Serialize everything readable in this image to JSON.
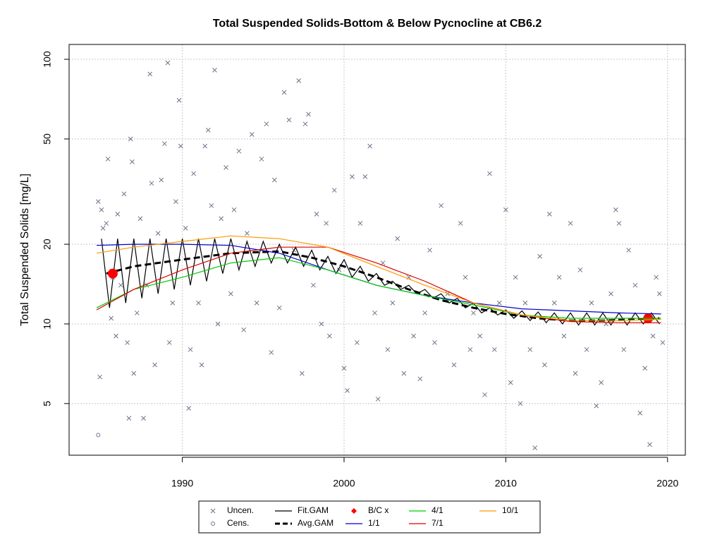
{
  "chart_data": {
    "type": "scatter",
    "title": "Total Suspended Solids-Bottom & Below Pycnocline at CB6.2",
    "y_label": "Total Suspended Solids [mg/L]",
    "log_y": true,
    "grid": true,
    "xlim": [
      1983.0,
      2021.1
    ],
    "ylim": [
      3.19,
      113.8
    ],
    "xticks": [
      1990,
      2000,
      2010,
      2020
    ],
    "yticks": [
      5,
      10,
      20,
      50,
      100
    ],
    "series": [
      {
        "name": "Uncen.",
        "color": "#6b7489",
        "mark": "x",
        "x": [
          1984.8,
          1984.9,
          1985,
          1985.1,
          1985.3,
          1985.4,
          1985.6,
          1985.7,
          1985.9,
          1986,
          1986.2,
          1986.4,
          1986.6,
          1986.7,
          1986.8,
          1986.9,
          1987,
          1987.2,
          1987.4,
          1987.6,
          1987.8,
          1988,
          1988.1,
          1988.3,
          1988.5,
          1988.7,
          1988.9,
          1989.1,
          1989.2,
          1989.4,
          1989.6,
          1989.8,
          1989.9,
          1990.2,
          1990.4,
          1990.5,
          1990.7,
          1991,
          1991.2,
          1991.4,
          1991.6,
          1991.8,
          1992,
          1992.2,
          1992.4,
          1992.7,
          1993,
          1993.2,
          1993.5,
          1993.8,
          1994,
          1994.3,
          1994.6,
          1994.9,
          1995.2,
          1995.5,
          1995.7,
          1996,
          1996.3,
          1996.6,
          1996.9,
          1997.2,
          1997.4,
          1997.6,
          1997.8,
          1998.1,
          1998.3,
          1998.6,
          1998.9,
          1999.1,
          1999.4,
          1999.7,
          2000,
          2000.2,
          2000.5,
          2000.8,
          2001,
          2001.3,
          2001.6,
          2001.9,
          2002.1,
          2002.4,
          2002.7,
          2003,
          2003.3,
          2003.7,
          2004,
          2004.3,
          2004.7,
          2005,
          2005.3,
          2005.6,
          2006,
          2006.4,
          2006.8,
          2007.2,
          2007.5,
          2007.8,
          2008,
          2008.4,
          2008.7,
          2009,
          2009.3,
          2009.6,
          2010,
          2010.3,
          2010.6,
          2010.9,
          2011.2,
          2011.5,
          2011.8,
          2012.1,
          2012.4,
          2012.7,
          2013,
          2013.3,
          2013.6,
          2014,
          2014.3,
          2014.6,
          2015,
          2015.3,
          2015.6,
          2015.9,
          2016.2,
          2016.5,
          2016.8,
          2017,
          2017.3,
          2017.6,
          2018,
          2018.3,
          2018.6,
          2018.9,
          2019.1,
          2019.3,
          2019.5,
          2019.7
        ],
        "values": [
          29,
          6.3,
          27,
          23,
          24,
          42,
          10.5,
          15,
          9,
          26,
          14,
          31,
          8.5,
          4.4,
          50,
          41,
          6.5,
          11,
          25,
          4.4,
          14,
          88,
          34,
          7,
          22,
          35,
          48,
          97,
          8.5,
          12,
          29,
          70,
          47,
          23,
          4.8,
          8,
          37,
          12,
          7,
          47,
          54,
          28,
          91,
          10,
          25,
          39,
          13,
          27,
          45,
          9.5,
          22,
          52,
          12,
          42,
          57,
          7.8,
          35,
          11.5,
          75,
          59,
          19,
          83,
          6.5,
          57,
          62,
          14,
          26,
          10,
          24,
          9,
          32,
          16,
          6.8,
          5.6,
          36,
          8.5,
          24,
          36,
          47,
          11,
          5.2,
          17,
          8,
          12,
          21,
          6.5,
          15,
          9,
          6.2,
          11,
          19,
          8.5,
          28,
          13,
          7,
          24,
          15,
          8,
          11,
          9,
          5.4,
          37,
          8,
          12,
          27,
          6,
          15,
          5,
          12,
          8,
          3.4,
          18,
          7,
          26,
          12,
          15,
          9,
          24,
          6.5,
          16,
          8,
          12,
          4.9,
          6,
          10,
          13,
          27,
          24,
          8,
          19,
          14,
          4.6,
          6.8,
          3.5,
          9,
          15,
          13,
          8.5
        ]
      },
      {
        "name": "Cens.",
        "color": "#6b7489",
        "mark": "circle",
        "x": [
          1984.8
        ],
        "values": [
          3.8
        ]
      },
      {
        "name": "Fit.GAM",
        "color": "#000000",
        "mark": "line",
        "x": [
          1985,
          1985.5,
          1986,
          1986.5,
          1987,
          1987.5,
          1988,
          1988.5,
          1989,
          1989.5,
          1990,
          1990.5,
          1991,
          1991.5,
          1992,
          1992.5,
          1993,
          1993.5,
          1994,
          1994.5,
          1995,
          1995.5,
          1996,
          1996.5,
          1997,
          1997.5,
          1998,
          1998.5,
          1999,
          1999.5,
          2000,
          2000.5,
          2001,
          2001.5,
          2002,
          2002.5,
          2003,
          2003.5,
          2004,
          2004.5,
          2005,
          2005.5,
          2006,
          2006.5,
          2007,
          2007.5,
          2008,
          2008.5,
          2009,
          2009.5,
          2010,
          2010.5,
          2011,
          2011.5,
          2012,
          2012.5,
          2013,
          2013.5,
          2014,
          2014.5,
          2015,
          2015.5,
          2016,
          2016.5,
          2017,
          2017.5,
          2018,
          2018.5,
          2019,
          2019.5
        ],
        "values": [
          21,
          11.5,
          21,
          12,
          21,
          12.5,
          21,
          13,
          21,
          13.5,
          21,
          14,
          21,
          14.5,
          21,
          15.5,
          21,
          16,
          20.5,
          16.5,
          20.5,
          17,
          20,
          17,
          19.5,
          16.5,
          19,
          16,
          18,
          15.5,
          17.5,
          15,
          16.5,
          14.5,
          15.5,
          14,
          14.5,
          13.5,
          14,
          13,
          13.5,
          12.5,
          13,
          12,
          12.5,
          11.5,
          12,
          11,
          11.5,
          10.8,
          11.3,
          10.5,
          11.2,
          10.3,
          11.1,
          10.1,
          11,
          10,
          11,
          9.9,
          11,
          9.9,
          11,
          9.9,
          11,
          9.9,
          11,
          10,
          11,
          10
        ]
      },
      {
        "name": "Avg.GAM",
        "color": "#000000",
        "mark": "dashed",
        "x": [
          1985.3,
          1987,
          1990,
          1993,
          1996,
          1998,
          2000,
          2002,
          2004,
          2006,
          2008,
          2010,
          2012,
          2014,
          2016,
          2018,
          2019.5
        ],
        "values": [
          15.5,
          16.5,
          17.5,
          18.5,
          18.8,
          17.8,
          16.5,
          15,
          13.5,
          12.3,
          11.5,
          10.9,
          10.5,
          10.3,
          10.3,
          10.4,
          10.5
        ]
      },
      {
        "name": "B/C x",
        "color": "#ff0000",
        "mark": "dot",
        "x": [
          1985.7,
          2018.8
        ],
        "values": [
          15.5,
          10.5
        ]
      },
      {
        "name": "1/1",
        "color": "#0000cc",
        "mark": "line",
        "x": [
          1984.7,
          1987,
          1990,
          1993,
          1996,
          1999,
          2002,
          2005,
          2008,
          2011,
          2014,
          2017,
          2019.6
        ],
        "values": [
          19.8,
          20,
          20,
          19.8,
          18.5,
          16,
          14,
          12.8,
          12,
          11.4,
          11.2,
          11,
          10.9
        ]
      },
      {
        "name": "4/1",
        "color": "#00cc00",
        "mark": "line",
        "x": [
          1984.7,
          1987,
          1990,
          1993,
          1996,
          1999,
          2002,
          2005,
          2008,
          2011,
          2014,
          2017,
          2019.6
        ],
        "values": [
          11.5,
          13.5,
          15,
          17,
          17.8,
          16,
          14,
          12.8,
          11.8,
          10.8,
          10.5,
          10.5,
          10.5
        ]
      },
      {
        "name": "7/1",
        "color": "#dd0000",
        "mark": "line",
        "x": [
          1984.7,
          1987,
          1990,
          1993,
          1996,
          1999,
          2002,
          2005,
          2008,
          2011,
          2014,
          2017,
          2019.6
        ],
        "values": [
          11.3,
          13.5,
          16,
          18.5,
          19.5,
          19.5,
          17,
          14.5,
          12,
          10.8,
          10.2,
          10.1,
          10.1
        ]
      },
      {
        "name": "10/1",
        "color": "#ff9900",
        "mark": "line",
        "x": [
          1984.7,
          1987,
          1990,
          1993,
          1996,
          1999,
          2002,
          2005,
          2008,
          2011,
          2014,
          2017,
          2019.6
        ],
        "values": [
          18.5,
          19.5,
          20.5,
          21.5,
          21,
          19.5,
          16.5,
          14,
          12,
          10.8,
          10.3,
          10.3,
          10.4
        ]
      }
    ]
  }
}
